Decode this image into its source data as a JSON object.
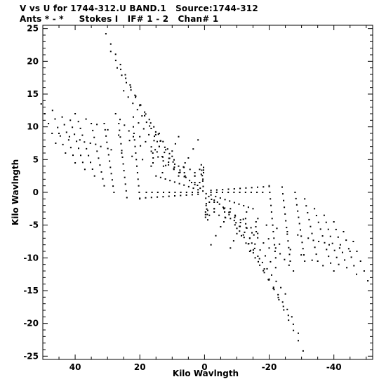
{
  "header": {
    "line1": "V vs U for 1744-312.U BAND.1   Source:1744-312",
    "line2": "Ants * - *     Stokes I   IF# 1 - 2   Chan# 1"
  },
  "chart_data": {
    "type": "scatter",
    "title": "",
    "xlabel": "Kilo Wavlngth",
    "ylabel": "Kilo Wavlngth",
    "xlim": [
      50,
      -52
    ],
    "ylim": [
      -25.5,
      25.5
    ],
    "xticks": [
      40,
      20,
      0,
      -20,
      -40
    ],
    "xtick_labels": [
      "40",
      "20",
      "0",
      "-20",
      "-40"
    ],
    "yticks": [
      25,
      20,
      15,
      10,
      5,
      0,
      -5,
      -10,
      -15,
      -20,
      -25
    ],
    "ytick_labels": [
      "25",
      "20",
      "15",
      "10",
      "5",
      "0",
      "-5",
      "-10",
      "-15",
      "-20",
      "-25"
    ],
    "grid": false,
    "marker_color": "#000000",
    "note": "uv-coverage tracks; each point also has its conjugate (-u,-v)",
    "tracks": [
      {
        "p0": [
          -0.4,
          -0.9
        ],
        "p1": [
          -1.0,
          -4.2
        ],
        "n": 5
      },
      {
        "p0": [
          -2.0,
          -0.4
        ],
        "p1": [
          -15.0,
          -2.5
        ],
        "n": 10
      },
      {
        "p0": [
          -2.0,
          0.0
        ],
        "p1": [
          -18.0,
          0.0
        ],
        "n": 10
      },
      {
        "p0": [
          -2.0,
          0.3
        ],
        "p1": [
          -20.0,
          0.9
        ],
        "n": 11
      },
      {
        "p0": [
          -3.0,
          -1.2
        ],
        "p1": [
          -16.0,
          -6.0
        ],
        "n": 9
      },
      {
        "p0": [
          -4.0,
          -1.5
        ],
        "p1": [
          -20.0,
          -8.5
        ],
        "n": 10
      },
      {
        "p0": [
          -6.0,
          -2.5
        ],
        "p1": [
          -22.0,
          -11.5
        ],
        "n": 11
      },
      {
        "p0": [
          -8.0,
          -4.0
        ],
        "p1": [
          -25.0,
          -15.5
        ],
        "n": 13
      },
      {
        "p0": [
          -10.0,
          -5.5
        ],
        "p1": [
          -27.0,
          -19.0
        ],
        "n": 13
      },
      {
        "p0": [
          -12.0,
          -6.5
        ],
        "p1": [
          -29.0,
          -21.5
        ],
        "n": 12
      },
      {
        "p0": [
          -14.0,
          -7.0
        ],
        "p1": [
          -30.5,
          -24.2
        ],
        "n": 12
      },
      {
        "p0": [
          -22.0,
          -8.5
        ],
        "p1": [
          -27.5,
          -12.0
        ],
        "n": 5
      },
      {
        "p0": [
          -2.0,
          -8.0
        ],
        "p1": [
          -8.0,
          -2.5
        ],
        "n": 5
      },
      {
        "p0": [
          -8.0,
          -8.5
        ],
        "p1": [
          -13.0,
          -3.0
        ],
        "n": 6
      },
      {
        "p0": [
          -14.0,
          -9.0
        ],
        "p1": [
          -16.5,
          -4.0
        ],
        "n": 5
      },
      {
        "p0": [
          -20.0,
          1.0
        ],
        "p1": [
          -22.0,
          -10.0
        ],
        "n": 12
      },
      {
        "p0": [
          -24.0,
          0.8
        ],
        "p1": [
          -26.5,
          -10.5
        ],
        "n": 12
      },
      {
        "p0": [
          -28.0,
          0.0
        ],
        "p1": [
          -31.0,
          -10.5
        ],
        "n": 12
      },
      {
        "p0": [
          -31.0,
          -1.0
        ],
        "p1": [
          -35.0,
          -10.5
        ],
        "n": 10
      },
      {
        "p0": [
          -34.0,
          -2.5
        ],
        "p1": [
          -39.0,
          -10.8
        ],
        "n": 9
      },
      {
        "p0": [
          -37.0,
          -3.5
        ],
        "p1": [
          -41.5,
          -11.0
        ],
        "n": 8
      },
      {
        "p0": [
          -40.0,
          -4.5
        ],
        "p1": [
          -44.0,
          -11.5
        ],
        "n": 7
      },
      {
        "p0": [
          -43.0,
          -6.0
        ],
        "p1": [
          -47.0,
          -12.5
        ],
        "n": 6
      },
      {
        "p0": [
          -46.0,
          -7.5
        ],
        "p1": [
          -50.5,
          -13.5
        ],
        "n": 5
      },
      {
        "p0": [
          -3.0,
          -2.5
        ],
        "p1": [
          -45.0,
          -9.0
        ],
        "n": 14
      },
      {
        "p0": [
          -3.0,
          -3.0
        ],
        "p1": [
          -40.0,
          -12.0
        ],
        "n": 12
      },
      {
        "p0": [
          -1.5,
          -1.5
        ],
        "p1": [
          -6.0,
          -4.5
        ],
        "n": 4
      },
      {
        "p0": [
          -0.5,
          -2.0
        ],
        "p1": [
          -1.5,
          -3.5
        ],
        "n": 3
      },
      {
        "p0": [
          0.3,
          3.0
        ],
        "p1": [
          0.3,
          3.8
        ],
        "n": 3
      },
      {
        "p0": [
          -0.5,
          -0.2
        ],
        "p1": [
          -3.0,
          -1.5
        ],
        "n": 4
      }
    ]
  }
}
